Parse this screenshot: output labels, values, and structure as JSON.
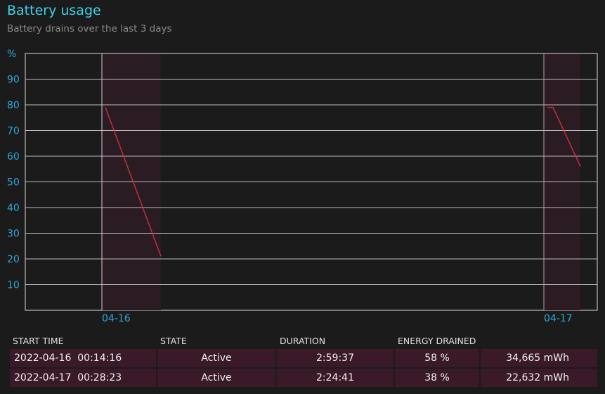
{
  "header": {
    "title": "Battery usage",
    "subtitle": "Battery drains over the last 3 days"
  },
  "chart_data": {
    "type": "line",
    "ylabel": "%",
    "ylim": [
      0,
      100
    ],
    "yticks": [
      10,
      20,
      30,
      40,
      50,
      60,
      70,
      80,
      90
    ],
    "grid": true,
    "x_tick_labels": [
      "04-16",
      "04-17"
    ],
    "series": [
      {
        "values": [
          [
            0,
            79
          ],
          [
            1,
            21
          ]
        ]
      },
      {
        "values": [
          [
            0,
            79
          ],
          [
            0.17,
            79
          ],
          [
            1,
            56
          ]
        ]
      }
    ],
    "color": "#c8323c"
  },
  "table": {
    "headers": [
      "START TIME",
      "STATE",
      "DURATION",
      "ENERGY DRAINED"
    ],
    "rows": [
      {
        "start": "2022-04-16  00:14:16",
        "state": "Active",
        "duration": "2:59:37",
        "pct": "58 %",
        "energy": "34,665 mWh"
      },
      {
        "start": "2022-04-17  00:28:23",
        "state": "Active",
        "duration": "2:24:41",
        "pct": "38 %",
        "energy": "22,632 mWh"
      }
    ]
  }
}
